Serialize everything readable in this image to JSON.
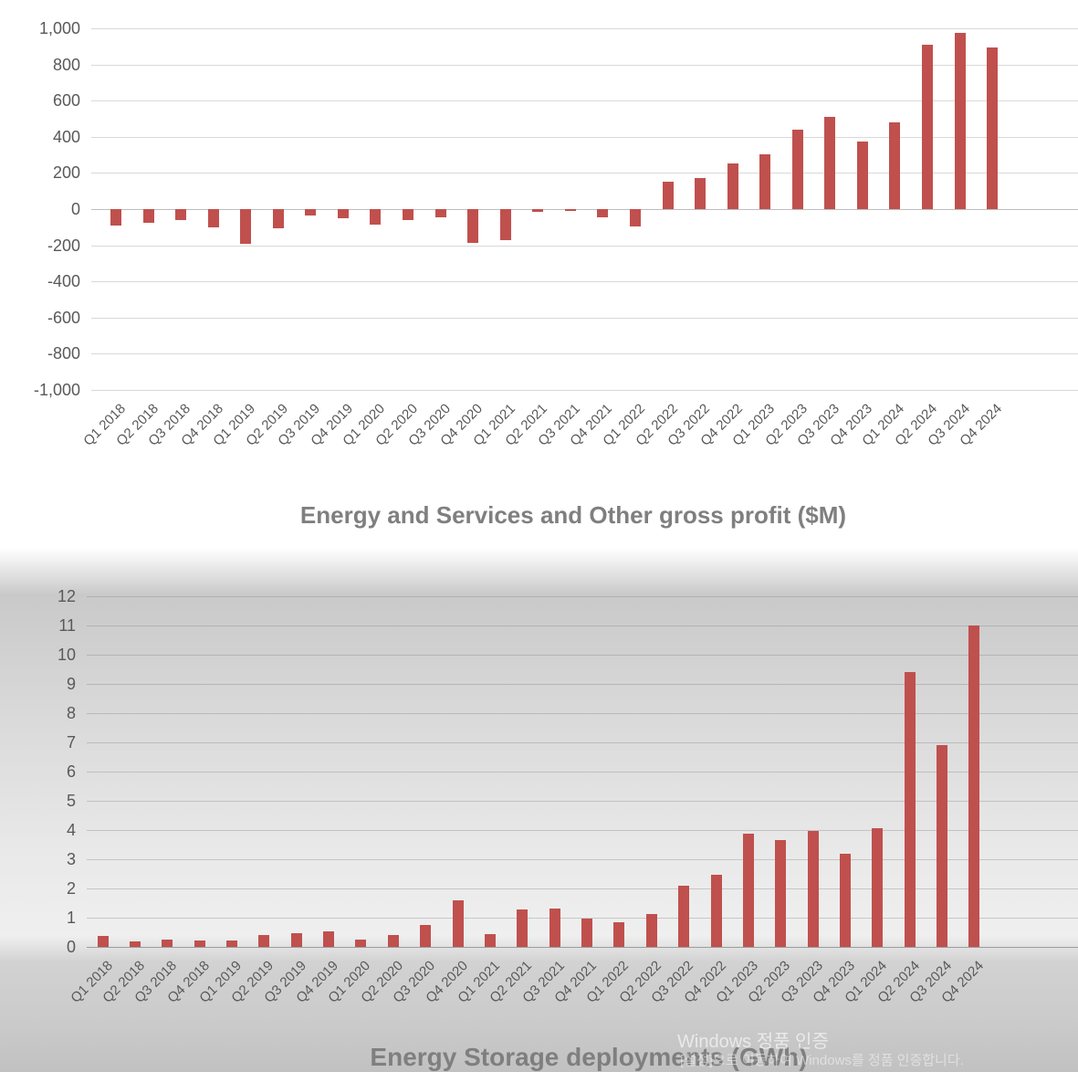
{
  "watermark": {
    "line1": "Windows 정품 인증",
    "line2": "[설정]으로 이동하여 Windows를 정품 인증합니다."
  },
  "colors": {
    "bar": "#c0504d",
    "gridline": "#d9d9d9",
    "tick_text": "#595959",
    "title_text": "#7f7f7f"
  },
  "chart_data": [
    {
      "type": "bar",
      "title": "Energy and Services and Other gross profit ($M)",
      "xlabel": "",
      "ylabel": "",
      "ylim": [
        -1000,
        1000
      ],
      "ytick_step": 200,
      "grid": true,
      "legend": "none",
      "bar_color": "#c0504d",
      "yticks": [
        "1,000",
        "800",
        "600",
        "400",
        "200",
        "0",
        "-200",
        "-400",
        "-600",
        "-800",
        "-1,000"
      ],
      "categories": [
        "Q1 2018",
        "Q2 2018",
        "Q3 2018",
        "Q4 2018",
        "Q1 2019",
        "Q2 2019",
        "Q3 2019",
        "Q4 2019",
        "Q1 2020",
        "Q2 2020",
        "Q3 2020",
        "Q4 2020",
        "Q1 2021",
        "Q2 2021",
        "Q3 2021",
        "Q4 2021",
        "Q1 2022",
        "Q2 2022",
        "Q3 2022",
        "Q4 2022",
        "Q1 2023",
        "Q2 2023",
        "Q3 2023",
        "Q4 2023",
        "Q1 2024",
        "Q2 2024",
        "Q3 2024",
        "Q4 2024"
      ],
      "values": [
        -90,
        -75,
        -60,
        -100,
        -190,
        -105,
        -35,
        -50,
        -85,
        -60,
        -45,
        -185,
        -170,
        -15,
        -12,
        -45,
        -95,
        150,
        170,
        255,
        305,
        440,
        510,
        375,
        480,
        910,
        975,
        895
      ]
    },
    {
      "type": "bar",
      "title": "Energy Storage deployments (GWh)",
      "xlabel": "",
      "ylabel": "",
      "ylim": [
        0,
        12
      ],
      "ytick_step": 1,
      "grid": true,
      "legend": "none",
      "bar_color": "#c0504d",
      "yticks": [
        "12",
        "11",
        "10",
        "9",
        "8",
        "7",
        "6",
        "5",
        "4",
        "3",
        "2",
        "1",
        "0"
      ],
      "categories": [
        "Q1 2018",
        "Q2 2018",
        "Q3 2018",
        "Q4 2018",
        "Q1 2019",
        "Q2 2019",
        "Q3 2019",
        "Q4 2019",
        "Q1 2020",
        "Q2 2020",
        "Q3 2020",
        "Q4 2020",
        "Q1 2021",
        "Q2 2021",
        "Q3 2021",
        "Q4 2021",
        "Q1 2022",
        "Q2 2022",
        "Q3 2022",
        "Q4 2022",
        "Q1 2023",
        "Q2 2023",
        "Q3 2023",
        "Q4 2023",
        "Q1 2024",
        "Q2 2024",
        "Q3 2024",
        "Q4 2024"
      ],
      "values": [
        0.37,
        0.2,
        0.24,
        0.23,
        0.23,
        0.42,
        0.48,
        0.53,
        0.26,
        0.42,
        0.76,
        1.58,
        0.45,
        1.27,
        1.3,
        0.98,
        0.85,
        1.13,
        2.1,
        2.46,
        3.89,
        3.65,
        3.98,
        3.2,
        4.05,
        9.4,
        6.9,
        11.0
      ]
    }
  ]
}
